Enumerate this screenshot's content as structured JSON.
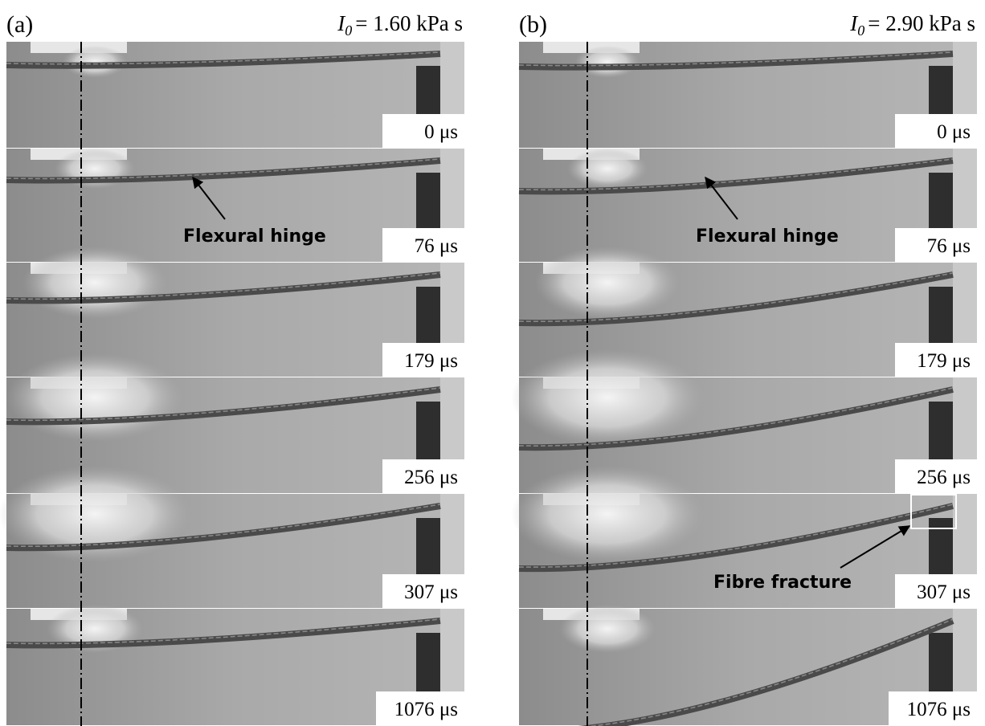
{
  "panels": [
    {
      "label": "(a)",
      "impulse": {
        "symbol": "I",
        "subscript": "0",
        "text": "= 1.60 kPa s"
      },
      "frames": [
        {
          "time": "0 μs"
        },
        {
          "time": "76 μs",
          "annotation": "Flexural hinge"
        },
        {
          "time": "179 μs"
        },
        {
          "time": "256 μs"
        },
        {
          "time": "307 μs"
        },
        {
          "time": "1076 μs"
        }
      ]
    },
    {
      "label": "(b)",
      "impulse": {
        "symbol": "I",
        "subscript": "0",
        "text": "= 2.90 kPa s"
      },
      "frames": [
        {
          "time": "0 μs"
        },
        {
          "time": "76 μs",
          "annotation": "Flexural hinge"
        },
        {
          "time": "179 μs"
        },
        {
          "time": "256 μs"
        },
        {
          "time": "307 μs",
          "annotation": "Fibre fracture"
        },
        {
          "time": "1076 μs"
        }
      ]
    }
  ]
}
